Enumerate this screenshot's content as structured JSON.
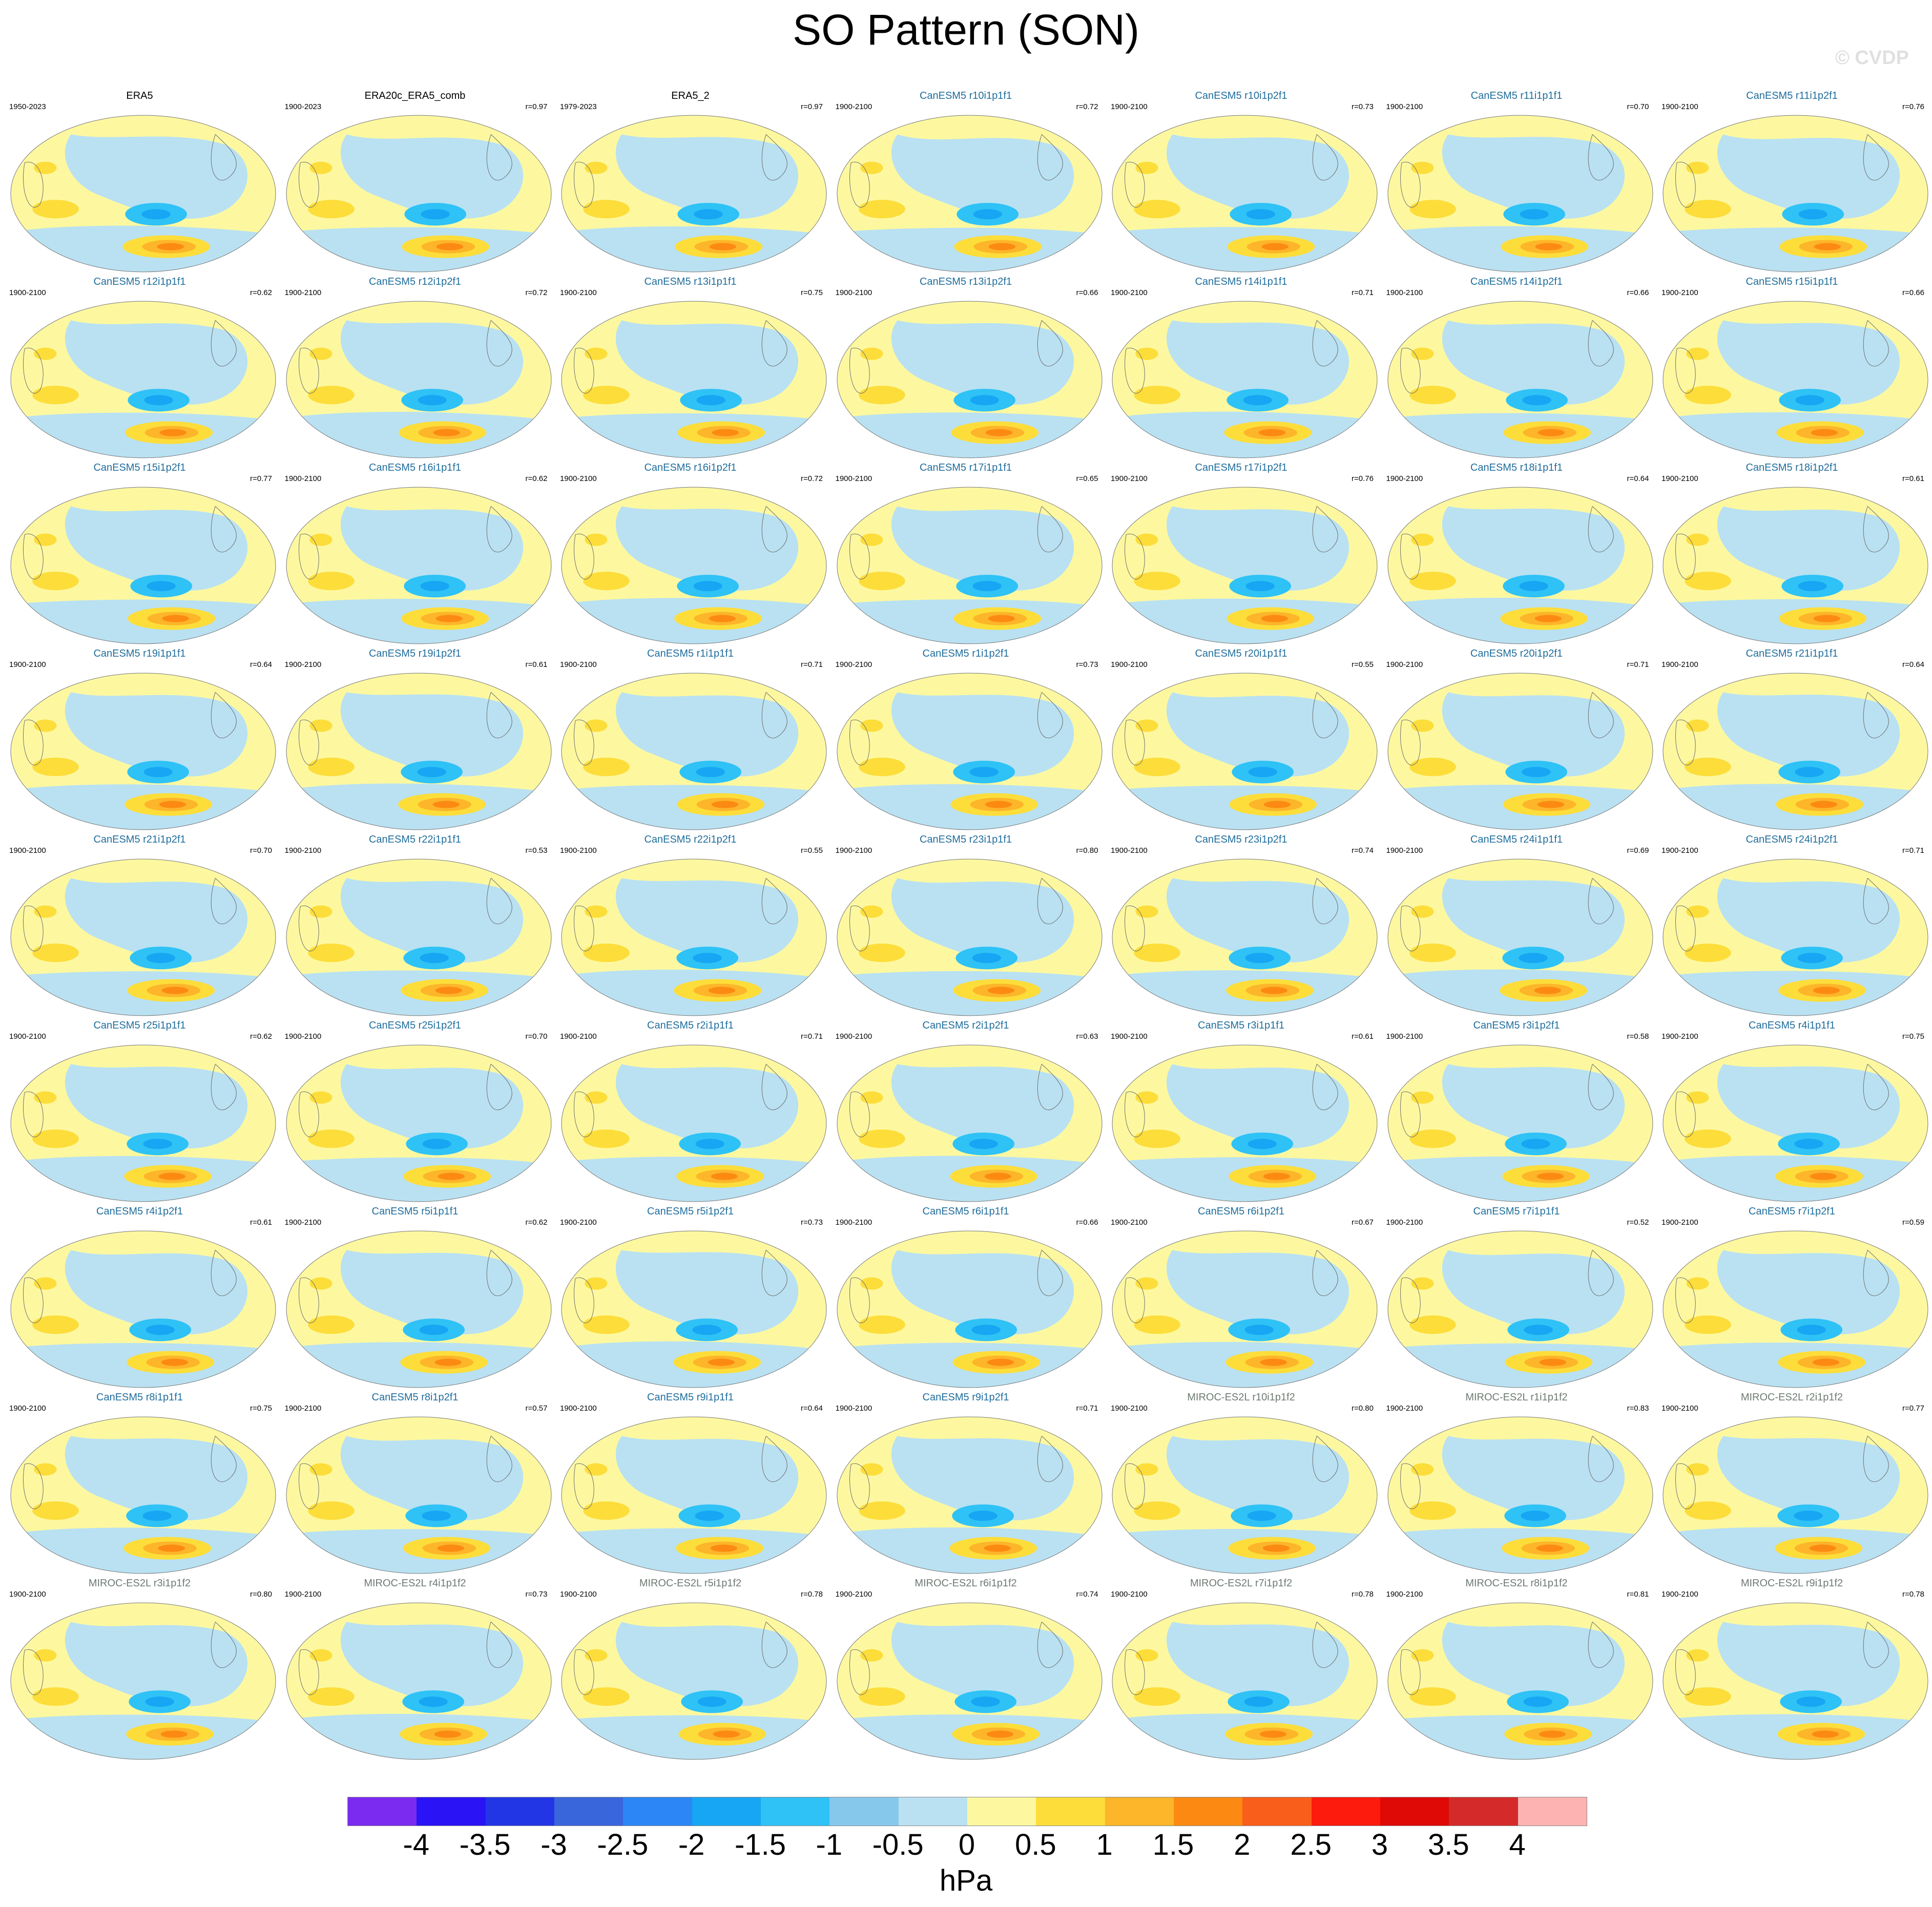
{
  "title": "SO Pattern (SON)",
  "credit": "© CVDP",
  "title_colors": {
    "obs": "#000000",
    "CanESM5": "#1f6d9c",
    "MIROC-ES2L": "#6e7a72"
  },
  "panels": [
    {
      "name": "ERA5",
      "group": "obs",
      "years": "1950-2023",
      "corr": ""
    },
    {
      "name": "ERA20c_ERA5_comb",
      "group": "obs",
      "years": "1900-2023",
      "corr": "r=0.97"
    },
    {
      "name": "ERA5_2",
      "group": "obs",
      "years": "1979-2023",
      "corr": "r=0.97"
    },
    {
      "name": "CanESM5 r10i1p1f1",
      "group": "CanESM5",
      "years": "1900-2100",
      "corr": "r=0.72"
    },
    {
      "name": "CanESM5 r10i1p2f1",
      "group": "CanESM5",
      "years": "1900-2100",
      "corr": "r=0.73"
    },
    {
      "name": "CanESM5 r11i1p1f1",
      "group": "CanESM5",
      "years": "1900-2100",
      "corr": "r=0.70"
    },
    {
      "name": "CanESM5 r11i1p2f1",
      "group": "CanESM5",
      "years": "1900-2100",
      "corr": "r=0.76"
    },
    {
      "name": "CanESM5 r12i1p1f1",
      "group": "CanESM5",
      "years": "1900-2100",
      "corr": "r=0.62"
    },
    {
      "name": "CanESM5 r12i1p2f1",
      "group": "CanESM5",
      "years": "1900-2100",
      "corr": "r=0.72"
    },
    {
      "name": "CanESM5 r13i1p1f1",
      "group": "CanESM5",
      "years": "1900-2100",
      "corr": "r=0.75"
    },
    {
      "name": "CanESM5 r13i1p2f1",
      "group": "CanESM5",
      "years": "1900-2100",
      "corr": "r=0.66"
    },
    {
      "name": "CanESM5 r14i1p1f1",
      "group": "CanESM5",
      "years": "1900-2100",
      "corr": "r=0.71"
    },
    {
      "name": "CanESM5 r14i1p2f1",
      "group": "CanESM5",
      "years": "1900-2100",
      "corr": "r=0.66"
    },
    {
      "name": "CanESM5 r15i1p1f1",
      "group": "CanESM5",
      "years": "1900-2100",
      "corr": "r=0.66"
    },
    {
      "name": "CanESM5 r15i1p2f1",
      "group": "CanESM5",
      "years": "",
      "corr": "r=0.77"
    },
    {
      "name": "CanESM5 r16i1p1f1",
      "group": "CanESM5",
      "years": "1900-2100",
      "corr": "r=0.62"
    },
    {
      "name": "CanESM5 r16i1p2f1",
      "group": "CanESM5",
      "years": "1900-2100",
      "corr": "r=0.72"
    },
    {
      "name": "CanESM5 r17i1p1f1",
      "group": "CanESM5",
      "years": "1900-2100",
      "corr": "r=0.65"
    },
    {
      "name": "CanESM5 r17i1p2f1",
      "group": "CanESM5",
      "years": "1900-2100",
      "corr": "r=0.76"
    },
    {
      "name": "CanESM5 r18i1p1f1",
      "group": "CanESM5",
      "years": "1900-2100",
      "corr": "r=0.64"
    },
    {
      "name": "CanESM5 r18i1p2f1",
      "group": "CanESM5",
      "years": "1900-2100",
      "corr": "r=0.61"
    },
    {
      "name": "CanESM5 r19i1p1f1",
      "group": "CanESM5",
      "years": "1900-2100",
      "corr": "r=0.64"
    },
    {
      "name": "CanESM5 r19i1p2f1",
      "group": "CanESM5",
      "years": "1900-2100",
      "corr": "r=0.61"
    },
    {
      "name": "CanESM5 r1i1p1f1",
      "group": "CanESM5",
      "years": "1900-2100",
      "corr": "r=0.71"
    },
    {
      "name": "CanESM5 r1i1p2f1",
      "group": "CanESM5",
      "years": "1900-2100",
      "corr": "r=0.73"
    },
    {
      "name": "CanESM5 r20i1p1f1",
      "group": "CanESM5",
      "years": "1900-2100",
      "corr": "r=0.55"
    },
    {
      "name": "CanESM5 r20i1p2f1",
      "group": "CanESM5",
      "years": "1900-2100",
      "corr": "r=0.71"
    },
    {
      "name": "CanESM5 r21i1p1f1",
      "group": "CanESM5",
      "years": "1900-2100",
      "corr": "r=0.64"
    },
    {
      "name": "CanESM5 r21i1p2f1",
      "group": "CanESM5",
      "years": "1900-2100",
      "corr": "r=0.70"
    },
    {
      "name": "CanESM5 r22i1p1f1",
      "group": "CanESM5",
      "years": "1900-2100",
      "corr": "r=0.53"
    },
    {
      "name": "CanESM5 r22i1p2f1",
      "group": "CanESM5",
      "years": "1900-2100",
      "corr": "r=0.55"
    },
    {
      "name": "CanESM5 r23i1p1f1",
      "group": "CanESM5",
      "years": "1900-2100",
      "corr": "r=0.80"
    },
    {
      "name": "CanESM5 r23i1p2f1",
      "group": "CanESM5",
      "years": "1900-2100",
      "corr": "r=0.74"
    },
    {
      "name": "CanESM5 r24i1p1f1",
      "group": "CanESM5",
      "years": "1900-2100",
      "corr": "r=0.69"
    },
    {
      "name": "CanESM5 r24i1p2f1",
      "group": "CanESM5",
      "years": "1900-2100",
      "corr": "r=0.71"
    },
    {
      "name": "CanESM5 r25i1p1f1",
      "group": "CanESM5",
      "years": "1900-2100",
      "corr": "r=0.62"
    },
    {
      "name": "CanESM5 r25i1p2f1",
      "group": "CanESM5",
      "years": "1900-2100",
      "corr": "r=0.70"
    },
    {
      "name": "CanESM5 r2i1p1f1",
      "group": "CanESM5",
      "years": "1900-2100",
      "corr": "r=0.71"
    },
    {
      "name": "CanESM5 r2i1p2f1",
      "group": "CanESM5",
      "years": "1900-2100",
      "corr": "r=0.63"
    },
    {
      "name": "CanESM5 r3i1p1f1",
      "group": "CanESM5",
      "years": "1900-2100",
      "corr": "r=0.61"
    },
    {
      "name": "CanESM5 r3i1p2f1",
      "group": "CanESM5",
      "years": "1900-2100",
      "corr": "r=0.58"
    },
    {
      "name": "CanESM5 r4i1p1f1",
      "group": "CanESM5",
      "years": "1900-2100",
      "corr": "r=0.75"
    },
    {
      "name": "CanESM5 r4i1p2f1",
      "group": "CanESM5",
      "years": "",
      "corr": "r=0.61"
    },
    {
      "name": "CanESM5 r5i1p1f1",
      "group": "CanESM5",
      "years": "1900-2100",
      "corr": "r=0.62"
    },
    {
      "name": "CanESM5 r5i1p2f1",
      "group": "CanESM5",
      "years": "1900-2100",
      "corr": "r=0.73"
    },
    {
      "name": "CanESM5 r6i1p1f1",
      "group": "CanESM5",
      "years": "1900-2100",
      "corr": "r=0.66"
    },
    {
      "name": "CanESM5 r6i1p2f1",
      "group": "CanESM5",
      "years": "1900-2100",
      "corr": "r=0.67"
    },
    {
      "name": "CanESM5 r7i1p1f1",
      "group": "CanESM5",
      "years": "1900-2100",
      "corr": "r=0.52"
    },
    {
      "name": "CanESM5 r7i1p2f1",
      "group": "CanESM5",
      "years": "1900-2100",
      "corr": "r=0.59"
    },
    {
      "name": "CanESM5 r8i1p1f1",
      "group": "CanESM5",
      "years": "1900-2100",
      "corr": "r=0.75"
    },
    {
      "name": "CanESM5 r8i1p2f1",
      "group": "CanESM5",
      "years": "1900-2100",
      "corr": "r=0.57"
    },
    {
      "name": "CanESM5 r9i1p1f1",
      "group": "CanESM5",
      "years": "1900-2100",
      "corr": "r=0.64"
    },
    {
      "name": "CanESM5 r9i1p2f1",
      "group": "CanESM5",
      "years": "1900-2100",
      "corr": "r=0.71"
    },
    {
      "name": "MIROC-ES2L r10i1p1f2",
      "group": "MIROC-ES2L",
      "years": "1900-2100",
      "corr": "r=0.80"
    },
    {
      "name": "MIROC-ES2L r1i1p1f2",
      "group": "MIROC-ES2L",
      "years": "1900-2100",
      "corr": "r=0.83"
    },
    {
      "name": "MIROC-ES2L r2i1p1f2",
      "group": "MIROC-ES2L",
      "years": "1900-2100",
      "corr": "r=0.77"
    },
    {
      "name": "MIROC-ES2L r3i1p1f2",
      "group": "MIROC-ES2L",
      "years": "1900-2100",
      "corr": "r=0.80"
    },
    {
      "name": "MIROC-ES2L r4i1p1f2",
      "group": "MIROC-ES2L",
      "years": "1900-2100",
      "corr": "r=0.73"
    },
    {
      "name": "MIROC-ES2L r5i1p1f2",
      "group": "MIROC-ES2L",
      "years": "1900-2100",
      "corr": "r=0.78"
    },
    {
      "name": "MIROC-ES2L r6i1p1f2",
      "group": "MIROC-ES2L",
      "years": "1900-2100",
      "corr": "r=0.74"
    },
    {
      "name": "MIROC-ES2L r7i1p1f2",
      "group": "MIROC-ES2L",
      "years": "1900-2100",
      "corr": "r=0.78"
    },
    {
      "name": "MIROC-ES2L r8i1p1f2",
      "group": "MIROC-ES2L",
      "years": "1900-2100",
      "corr": "r=0.81"
    },
    {
      "name": "MIROC-ES2L r9i1p1f2",
      "group": "MIROC-ES2L",
      "years": "1900-2100",
      "corr": "r=0.78"
    }
  ],
  "colorbar": {
    "colors": [
      "#7b2af0",
      "#2a14f5",
      "#2236e6",
      "#3a66dc",
      "#2c86f5",
      "#17a6f3",
      "#2ec2f6",
      "#86c8ec",
      "#b9e1f2",
      "#fdf8a0",
      "#fddd3a",
      "#fdb52a",
      "#fc8a12",
      "#f95e1a",
      "#fd1b0e",
      "#df0905",
      "#d42a2a",
      "#fdb3b2"
    ],
    "labels": [
      "-4",
      "-3.5",
      "-3",
      "-2.5",
      "-2",
      "-1.5",
      "-1",
      "-0.5",
      "0",
      "0.5",
      "1",
      "1.5",
      "2",
      "2.5",
      "3",
      "3.5",
      "4"
    ],
    "units": "hPa"
  }
}
